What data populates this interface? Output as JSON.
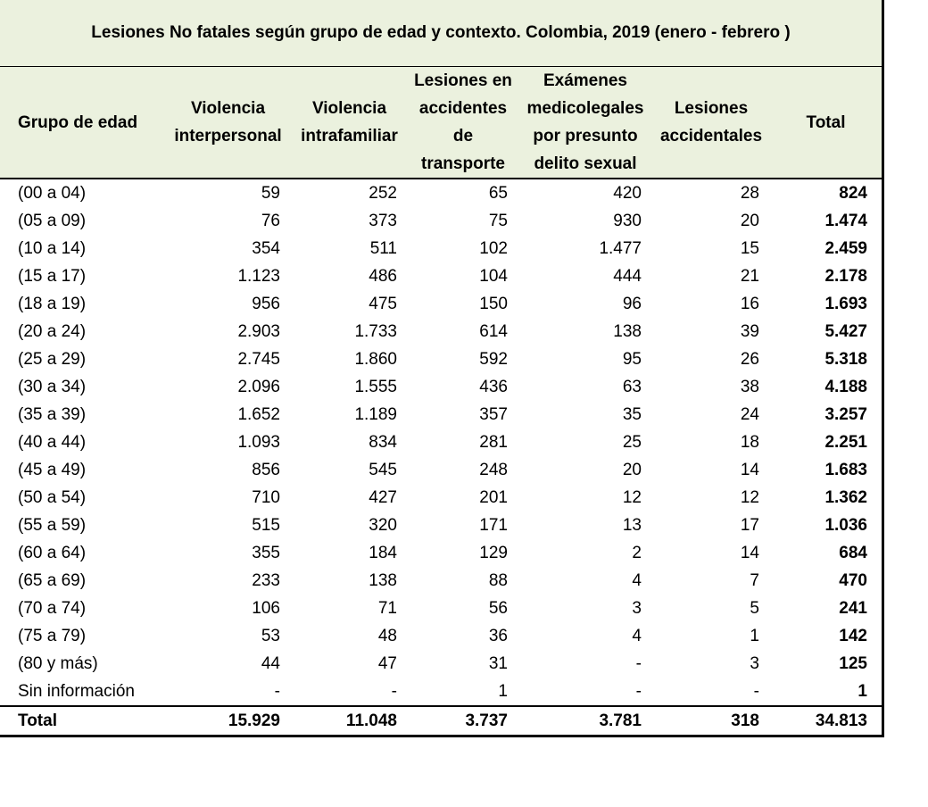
{
  "title": "Lesiones No fatales según grupo de edad y contexto. Colombia, 2019 (enero - febrero )",
  "columns": [
    [
      "Grupo de edad"
    ],
    [
      "Violencia",
      "interpersonal"
    ],
    [
      "Violencia",
      "intrafamiliar"
    ],
    [
      "Lesiones en",
      "accidentes",
      "de",
      "transporte"
    ],
    [
      "Exámenes",
      "medicolegales",
      "por presunto",
      "delito sexual"
    ],
    [
      "Lesiones",
      "accidentales"
    ],
    [
      "Total"
    ]
  ],
  "rows": [
    [
      "(00 a 04)",
      "59",
      "252",
      "65",
      "420",
      "28",
      "824"
    ],
    [
      "(05 a 09)",
      "76",
      "373",
      "75",
      "930",
      "20",
      "1.474"
    ],
    [
      "(10 a 14)",
      "354",
      "511",
      "102",
      "1.477",
      "15",
      "2.459"
    ],
    [
      "(15 a 17)",
      "1.123",
      "486",
      "104",
      "444",
      "21",
      "2.178"
    ],
    [
      "(18 a 19)",
      "956",
      "475",
      "150",
      "96",
      "16",
      "1.693"
    ],
    [
      "(20 a 24)",
      "2.903",
      "1.733",
      "614",
      "138",
      "39",
      "5.427"
    ],
    [
      "(25 a 29)",
      "2.745",
      "1.860",
      "592",
      "95",
      "26",
      "5.318"
    ],
    [
      "(30 a 34)",
      "2.096",
      "1.555",
      "436",
      "63",
      "38",
      "4.188"
    ],
    [
      "(35 a 39)",
      "1.652",
      "1.189",
      "357",
      "35",
      "24",
      "3.257"
    ],
    [
      "(40 a 44)",
      "1.093",
      "834",
      "281",
      "25",
      "18",
      "2.251"
    ],
    [
      "(45 a 49)",
      "856",
      "545",
      "248",
      "20",
      "14",
      "1.683"
    ],
    [
      "(50 a 54)",
      "710",
      "427",
      "201",
      "12",
      "12",
      "1.362"
    ],
    [
      "(55 a 59)",
      "515",
      "320",
      "171",
      "13",
      "17",
      "1.036"
    ],
    [
      "(60 a 64)",
      "355",
      "184",
      "129",
      "2",
      "14",
      "684"
    ],
    [
      "(65 a 69)",
      "233",
      "138",
      "88",
      "4",
      "7",
      "470"
    ],
    [
      "(70 a 74)",
      "106",
      "71",
      "56",
      "3",
      "5",
      "241"
    ],
    [
      "(75 a 79)",
      "53",
      "48",
      "36",
      "4",
      "1",
      "142"
    ],
    [
      "(80 y más)",
      "44",
      "47",
      "31",
      "-",
      "3",
      "125"
    ],
    [
      "Sin información",
      "-",
      "-",
      "1",
      "-",
      "-",
      "1"
    ]
  ],
  "total_row": [
    "Total",
    "15.929",
    "11.048",
    "3.737",
    "3.781",
    "318",
    "34.813"
  ],
  "colors": {
    "header_background": "#ebf1de",
    "rule": "#000000"
  }
}
